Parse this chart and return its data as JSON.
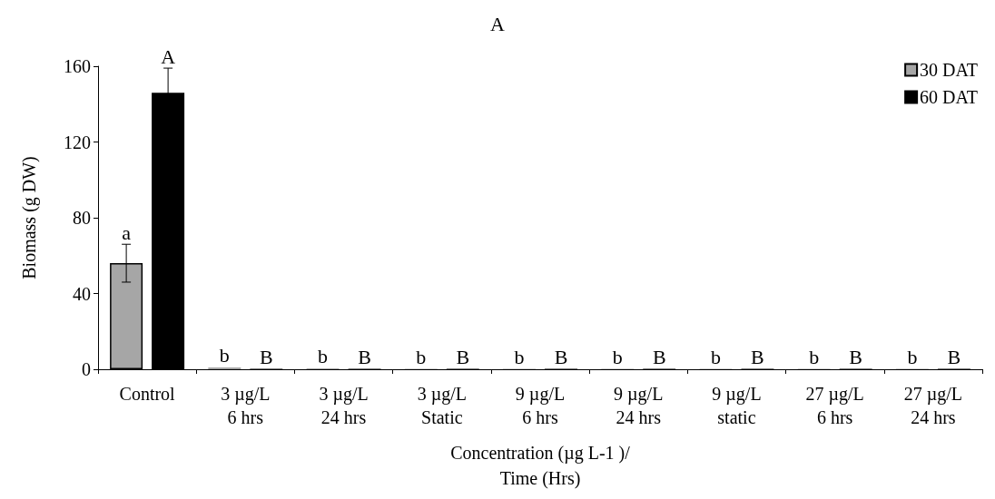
{
  "chart_data": {
    "type": "bar",
    "title": "A",
    "xlabel": "Concentration (µg L-1 )/\nTime (Hrs)",
    "ylabel": "Biomass (g DW)",
    "categories": [
      "Control",
      "3 µg/L\n6 hrs",
      "3 µg/L\n24 hrs",
      "3 µg/L\nStatic",
      "9 µg/L\n6 hrs",
      "9 µg/L\n24 hrs",
      "9 µg/L\nstatic",
      "27 µg/L\n6 hrs",
      "27 µg/L\n24 hrs"
    ],
    "series": [
      {
        "name": "30 DAT",
        "color": "#a6a6a6",
        "values": [
          56,
          1,
          0.5,
          0.2,
          0.2,
          0.2,
          0.2,
          0.2,
          0.2
        ],
        "errors": [
          10,
          null,
          null,
          null,
          null,
          null,
          null,
          null,
          null
        ],
        "value_labels": [
          "a",
          "b",
          "b",
          "b",
          "b",
          "b",
          "b",
          "b",
          "b"
        ]
      },
      {
        "name": "60 DAT",
        "color": "#000000",
        "values": [
          146,
          0.2,
          0.2,
          0.2,
          0.2,
          0.2,
          0.2,
          0.2,
          0.2
        ],
        "errors": [
          13,
          null,
          null,
          null,
          null,
          null,
          null,
          null,
          null
        ],
        "value_labels": [
          "A",
          "B",
          "B",
          "B",
          "B",
          "B",
          "B",
          "B",
          "B"
        ]
      }
    ],
    "ylim": [
      0,
      160
    ],
    "yticks": [
      0,
      40,
      80,
      120,
      160
    ],
    "grid": false,
    "legend": "top right"
  }
}
